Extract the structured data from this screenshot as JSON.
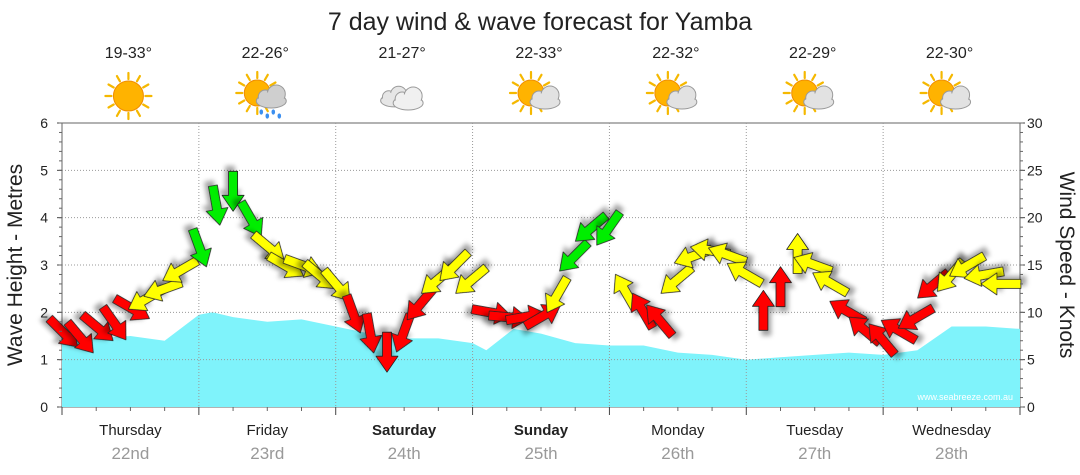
{
  "chart_data": {
    "type": "area",
    "title": "7 day wind & wave forecast for Yamba",
    "left_axis_label": "Wave Height - Metres",
    "right_axis_label": "Wind Speed - Knots",
    "left_ylim": [
      0,
      6
    ],
    "right_ylim": [
      0,
      30
    ],
    "left_ticks": [
      0,
      1,
      2,
      3,
      4,
      5,
      6
    ],
    "right_ticks": [
      0,
      5,
      10,
      15,
      20,
      25,
      30
    ],
    "grid": true,
    "watermark": "www.seabreeze.com.au",
    "days": [
      {
        "name": "Thursday",
        "date": "22nd",
        "temp": "19-33°",
        "icon": "sun-icon",
        "bold": false
      },
      {
        "name": "Friday",
        "date": "23rd",
        "temp": "22-26°",
        "icon": "sun-cloud-rain-icon",
        "bold": false
      },
      {
        "name": "Saturday",
        "date": "24th",
        "temp": "21-27°",
        "icon": "cloud-icon",
        "bold": true
      },
      {
        "name": "Sunday",
        "date": "25th",
        "temp": "22-33°",
        "icon": "sun-cloud-icon",
        "bold": true
      },
      {
        "name": "Monday",
        "date": "26th",
        "temp": "22-32°",
        "icon": "sun-cloud-icon",
        "bold": false
      },
      {
        "name": "Tuesday",
        "date": "27th",
        "temp": "22-29°",
        "icon": "sun-cloud-icon",
        "bold": false
      },
      {
        "name": "Wednesday",
        "date": "28th",
        "temp": "22-30°",
        "icon": "sun-cloud-icon",
        "bold": false
      }
    ],
    "series": [
      {
        "name": "Wave Height",
        "axis": "left",
        "color": "#7ff3fb",
        "x": [
          0,
          0.25,
          0.5,
          0.75,
          1,
          1.1,
          1.25,
          1.5,
          1.75,
          2,
          2.25,
          2.5,
          2.75,
          3,
          3.1,
          3.3,
          3.5,
          3.75,
          4,
          4.25,
          4.5,
          4.75,
          5,
          5.25,
          5.5,
          5.75,
          6,
          6.25,
          6.5,
          6.75,
          7
        ],
        "values": [
          1.45,
          1.45,
          1.5,
          1.4,
          1.95,
          2.0,
          1.9,
          1.8,
          1.85,
          1.7,
          1.55,
          1.45,
          1.45,
          1.35,
          1.2,
          1.65,
          1.55,
          1.35,
          1.3,
          1.3,
          1.15,
          1.1,
          1.0,
          1.05,
          1.1,
          1.15,
          1.1,
          1.2,
          1.7,
          1.7,
          1.65
        ]
      },
      {
        "name": "Wind Speed",
        "axis": "right",
        "x": [
          0,
          0.125,
          0.25,
          0.375,
          0.5,
          0.625,
          0.75,
          0.875,
          1,
          1.125,
          1.25,
          1.375,
          1.5,
          1.625,
          1.75,
          1.875,
          2,
          2.125,
          2.25,
          2.375,
          2.5,
          2.625,
          2.75,
          2.875,
          3,
          3.125,
          3.25,
          3.375,
          3.5,
          3.625,
          3.75,
          3.875,
          4,
          4.125,
          4.25,
          4.375,
          4.5,
          4.625,
          4.75,
          4.875,
          5,
          5.125,
          5.25,
          5.375,
          5.5,
          5.625,
          5.75,
          5.875,
          6,
          6.125,
          6.25,
          6.375,
          6.5,
          6.625,
          6.75,
          6.875
        ],
        "values": [
          8,
          7.5,
          8.5,
          9,
          10.5,
          11.5,
          12.5,
          14.5,
          17,
          21.5,
          23,
          20,
          17,
          15,
          15,
          14,
          13,
          10,
          8,
          6,
          8,
          11,
          13.5,
          15,
          13.5,
          10,
          9.5,
          9.5,
          9.5,
          12,
          16,
          19,
          19,
          12,
          10,
          9,
          13.5,
          16,
          16.5,
          16,
          14,
          10,
          12.5,
          16,
          15,
          13,
          10,
          8,
          7,
          8,
          9.5,
          13,
          14,
          15,
          14,
          13
        ],
        "colors": [
          "#ff0000",
          "#ff0000",
          "#ff0000",
          "#ff0000",
          "#ff0000",
          "#ffff00",
          "#ffff00",
          "#ffff00",
          "#00ee00",
          "#00ee00",
          "#00ee00",
          "#00ee00",
          "#ffff00",
          "#ffff00",
          "#ffff00",
          "#ffff00",
          "#ffff00",
          "#ff0000",
          "#ff0000",
          "#ff0000",
          "#ff0000",
          "#ff0000",
          "#ffff00",
          "#ffff00",
          "#ffff00",
          "#ff0000",
          "#ff0000",
          "#ff0000",
          "#ff0000",
          "#ffff00",
          "#00ee00",
          "#00ee00",
          "#00ee00",
          "#ffff00",
          "#ff0000",
          "#ff0000",
          "#ffff00",
          "#ffff00",
          "#ffff00",
          "#ffff00",
          "#ffff00",
          "#ff0000",
          "#ff0000",
          "#ffff00",
          "#ffff00",
          "#ffff00",
          "#ff0000",
          "#ff0000",
          "#ff0000",
          "#ff0000",
          "#ff0000",
          "#ff0000",
          "#ffff00",
          "#ffff00",
          "#ffff00",
          "#ffff00"
        ],
        "direction_deg": [
          135,
          140,
          130,
          145,
          120,
          240,
          250,
          240,
          160,
          170,
          180,
          150,
          130,
          120,
          110,
          130,
          140,
          160,
          170,
          180,
          200,
          220,
          230,
          225,
          230,
          100,
          95,
          80,
          60,
          210,
          225,
          230,
          215,
          330,
          330,
          320,
          230,
          250,
          280,
          290,
          300,
          0,
          0,
          0,
          290,
          300,
          300,
          310,
          320,
          300,
          240,
          230,
          220,
          240,
          260,
          270
        ]
      }
    ]
  }
}
